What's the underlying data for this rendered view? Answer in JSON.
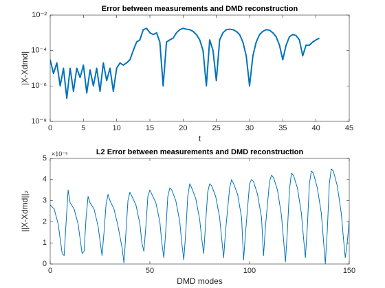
{
  "chart_data": [
    {
      "type": "line",
      "title": "Error between measurements and DMD reconstruction",
      "x_label": "t",
      "y_label": "|X-Xdmd|",
      "yscale": "log",
      "color": "#0072bd",
      "line_width": 2,
      "xlim": [
        0,
        45
      ],
      "xticks": [
        0,
        5,
        10,
        15,
        20,
        25,
        30,
        35,
        40,
        45
      ],
      "ylim": [
        1e-08,
        0.01
      ],
      "yticks": [
        {
          "value": 1e-08,
          "label": "10⁻⁸"
        },
        {
          "value": 1e-06,
          "label": "10⁻⁶"
        },
        {
          "value": 0.0001,
          "label": "10⁻⁴"
        },
        {
          "value": 0.01,
          "label": "10⁻²"
        }
      ],
      "x": [
        0,
        0.5,
        1,
        1.5,
        2,
        2.5,
        3,
        3.5,
        4,
        4.5,
        5,
        5.5,
        6,
        6.5,
        7,
        7.5,
        8,
        8.5,
        9,
        9.5,
        10,
        10.5,
        11,
        11.5,
        12,
        12.5,
        13,
        13.5,
        14,
        14.5,
        15,
        15.5,
        16,
        16.5,
        17,
        17.5,
        18,
        18.5,
        19,
        19.5,
        20,
        20.5,
        21,
        21.5,
        22,
        22.5,
        23,
        23.5,
        24,
        24.5,
        25,
        25.5,
        26,
        26.5,
        27,
        27.5,
        28,
        28.5,
        29,
        29.5,
        30,
        30.5,
        31,
        31.5,
        32,
        32.5,
        33,
        33.5,
        34,
        34.5,
        35,
        35.5,
        36,
        36.5,
        37,
        37.5,
        38,
        38.5,
        39,
        39.5,
        40,
        40.5
      ],
      "values": [
        3e-05,
        5e-06,
        2e-05,
        1e-06,
        1e-05,
        2e-07,
        1e-05,
        5e-07,
        1e-05,
        3e-06,
        1.5e-05,
        4e-07,
        8e-06,
        1e-06,
        1e-05,
        5e-07,
        2e-05,
        2e-06,
        1e-05,
        5e-07,
        1e-05,
        2e-05,
        1.5e-05,
        2e-05,
        3e-05,
        0.0001,
        0.0003,
        0.0004,
        0.0015,
        0.0018,
        0.001,
        0.0008,
        0.001,
        0.0003,
        1e-06,
        0.0003,
        0.0004,
        0.0005,
        0.001,
        0.0015,
        0.0018,
        0.0016,
        0.0015,
        0.0012,
        0.0008,
        0.0004,
        0.0001,
        1e-06,
        0.0004,
        0.0001,
        2e-06,
        0.0004,
        0.001,
        0.0015,
        0.0016,
        0.0015,
        0.0012,
        0.0008,
        0.0003,
        5e-05,
        1e-06,
        5e-05,
        0.0003,
        0.0008,
        0.0012,
        0.0015,
        0.0014,
        0.001,
        0.0006,
        0.0002,
        3e-05,
        0.0002,
        0.0006,
        0.0008,
        0.0007,
        0.0004,
        5e-05,
        0.0002,
        0.0002,
        0.0003,
        0.0004,
        0.0005
      ]
    },
    {
      "type": "line",
      "title": "L2 Error between measurements and DMD reconstruction",
      "x_label": "DMD modes",
      "y_label": "||X-Xdmd||₂",
      "y_exponent_label": "×10⁻⁵",
      "color": "#0072bd",
      "line_width": 1,
      "xlim": [
        0,
        150
      ],
      "xticks": [
        0,
        50,
        100,
        150
      ],
      "ylim": [
        0,
        5e-05
      ],
      "yticks": [
        0,
        {
          "value": 1e-05,
          "label": "1"
        },
        {
          "value": 2e-05,
          "label": "2"
        },
        {
          "value": 3e-05,
          "label": "3"
        },
        {
          "value": 4e-05,
          "label": "4"
        },
        {
          "value": 5e-05,
          "label": "5"
        }
      ],
      "x": [
        0,
        2,
        4,
        5,
        6,
        7,
        8,
        9,
        10,
        12,
        14,
        15,
        16,
        17,
        18,
        19,
        20,
        22,
        24,
        25,
        26,
        27,
        28,
        29,
        30,
        32,
        34,
        36,
        37,
        38,
        39,
        40,
        41,
        43,
        45,
        46,
        47,
        48,
        49,
        50,
        51,
        53,
        55,
        56,
        57,
        58,
        59,
        60,
        61,
        63,
        65,
        66,
        67,
        68,
        69,
        70,
        71,
        73,
        75,
        76,
        77,
        78,
        79,
        80,
        81,
        83,
        85,
        86,
        87,
        88,
        90,
        91,
        92,
        94,
        96,
        97,
        98,
        100,
        101,
        102,
        104,
        106,
        107,
        108,
        110,
        111,
        112,
        114,
        116,
        117,
        118,
        119,
        120,
        121,
        122,
        124,
        126,
        127,
        128,
        129,
        130,
        131,
        132,
        134,
        136,
        137,
        138,
        139,
        140,
        141,
        142,
        144,
        146,
        147,
        148,
        149,
        150
      ],
      "values": [
        2.8e-05,
        2.6e-05,
        1.9e-05,
        1.2e-05,
        5e-06,
        4e-06,
        2e-05,
        3.5e-05,
        2.9e-05,
        2.6e-05,
        1.9e-05,
        1.2e-05,
        5e-06,
        6e-06,
        2.2e-05,
        3.2e-05,
        2.9e-05,
        2.6e-05,
        1.8e-05,
        1.1e-05,
        4e-06,
        1.5e-05,
        2.8e-05,
        3.3e-05,
        3e-05,
        2.6e-05,
        1.8e-05,
        8e-06,
        5e-07,
        1.5e-05,
        3e-05,
        3.4e-05,
        3.2e-05,
        2.8e-05,
        1.9e-05,
        1e-05,
        6e-06,
        1.8e-05,
        3.2e-05,
        3.5e-05,
        3.3e-05,
        2.9e-05,
        2e-05,
        1e-05,
        3e-06,
        1.6e-05,
        3.2e-05,
        3.6e-05,
        3.5e-05,
        3e-05,
        2e-05,
        1e-05,
        2e-06,
        1.5e-05,
        3.2e-05,
        3.8e-05,
        3.6e-05,
        3.1e-05,
        2.1e-05,
        1.2e-05,
        5e-06,
        2e-05,
        3.4e-05,
        3.8e-05,
        3.7e-05,
        3.2e-05,
        2.2e-05,
        1.2e-05,
        3e-06,
        1.6e-05,
        3.6e-05,
        4e-05,
        3.8e-05,
        3.3e-05,
        2.2e-05,
        2e-06,
        1.5e-05,
        3.8e-05,
        4e-05,
        3.9e-05,
        3.3e-05,
        2.2e-05,
        4e-06,
        1.8e-05,
        3.9e-05,
        4.2e-05,
        4.1e-05,
        3.5e-05,
        2.3e-05,
        1.2e-05,
        1e-06,
        1.6e-05,
        3.5e-05,
        4.3e-05,
        4.2e-05,
        3.6e-05,
        2.4e-05,
        1.3e-05,
        3e-06,
        1.8e-05,
        3.8e-05,
        4.4e-05,
        4.3e-05,
        3.6e-05,
        2.4e-05,
        1.2e-05,
        2e-07,
        1.6e-05,
        3.8e-05,
        4.5e-05,
        4.4e-05,
        3.7e-05,
        2.4e-05,
        1.3e-05,
        3e-06,
        1e-05,
        2.1e-05
      ]
    }
  ]
}
